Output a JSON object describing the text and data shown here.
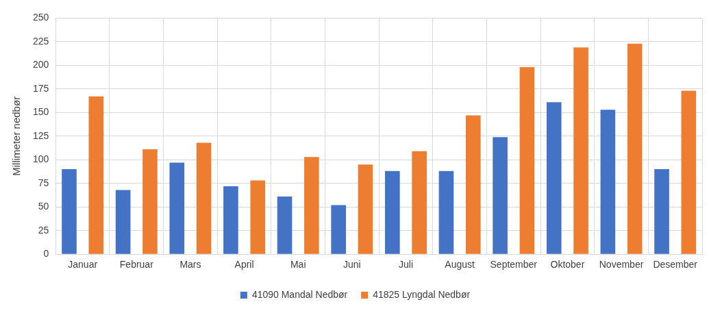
{
  "chart_data": {
    "type": "bar",
    "ylabel": "Millimeter nedbør",
    "categories": [
      "Januar",
      "Februar",
      "Mars",
      "April",
      "Mai",
      "Juni",
      "Juli",
      "August",
      "September",
      "Oktober",
      "November",
      "Desember"
    ],
    "series": [
      {
        "name": "41090 Mandal Nedbør",
        "color": "#4472c4",
        "values": [
          90,
          68,
          97,
          72,
          61,
          52,
          88,
          88,
          124,
          161,
          153,
          90
        ]
      },
      {
        "name": "41825 Lyngdal Nedbør",
        "color": "#ed7d31",
        "values": [
          167,
          111,
          118,
          78,
          103,
          95,
          109,
          147,
          198,
          219,
          223,
          173
        ]
      }
    ],
    "ylim": [
      0,
      250
    ],
    "yticks": [
      0,
      25,
      50,
      75,
      100,
      125,
      150,
      175,
      200,
      225,
      250
    ],
    "grid": true,
    "legend": "bottom"
  }
}
